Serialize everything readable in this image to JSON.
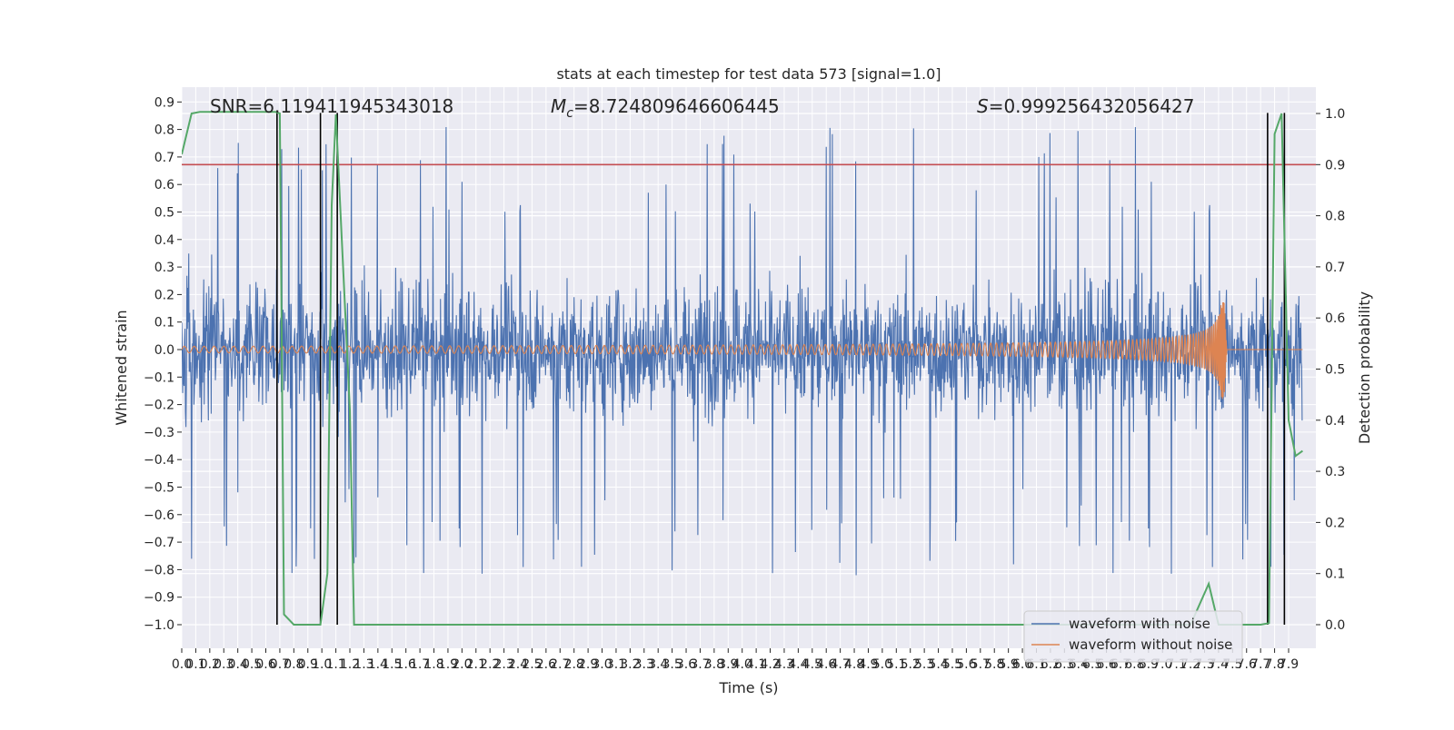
{
  "chart_data": {
    "type": "line",
    "title": "stats at each timestep for test data 573 [signal=1.0]",
    "xlabel": "Time (s)",
    "ylabel": "Whitened strain",
    "y2label": "Detection probability",
    "xlim": [
      0.0,
      8.0
    ],
    "ylim": [
      -1.1,
      0.95
    ],
    "y2lim": [
      -0.05,
      1.03
    ],
    "grid": true,
    "legend_position": "bottom-right",
    "annotations": {
      "snr": "SNR=6.119411945343018",
      "mc_symbol": "M",
      "mc_sub": "c",
      "mc_value": "=8.724809646606445",
      "s_symbol": "S",
      "s_value": "=0.999256432056427"
    },
    "xticks": [
      "0.0",
      "0.1",
      "0.2",
      "0.3",
      "0.4",
      "0.5",
      "0.6",
      "0.7",
      "0.8",
      "0.9",
      "1.0",
      "1.1",
      "1.2",
      "1.3",
      "1.4",
      "1.5",
      "1.6",
      "1.7",
      "1.8",
      "1.9",
      "2.0",
      "2.1",
      "2.2",
      "2.3",
      "2.4",
      "2.5",
      "2.6",
      "2.7",
      "2.8",
      "2.9",
      "3.0",
      "3.1",
      "3.2",
      "3.3",
      "3.4",
      "3.5",
      "3.6",
      "3.7",
      "3.8",
      "3.9",
      "4.0",
      "4.1",
      "4.2",
      "4.3",
      "4.4",
      "4.5",
      "4.6",
      "4.7",
      "4.8",
      "4.9",
      "5.0",
      "5.1",
      "5.2",
      "5.3",
      "5.4",
      "5.5",
      "5.6",
      "5.7",
      "5.8",
      "5.9",
      "6.0",
      "6.1",
      "6.2",
      "6.3",
      "6.4",
      "6.5",
      "6.6",
      "6.7",
      "6.8",
      "6.9",
      "7.0",
      "7.1",
      "7.2",
      "7.3",
      "7.4",
      "7.5",
      "7.6",
      "7.7",
      "7.8",
      "7.9"
    ],
    "yticks": [
      "0.9",
      "0.8",
      "0.7",
      "0.6",
      "0.5",
      "0.4",
      "0.3",
      "0.2",
      "0.1",
      "0.0",
      "−0.1",
      "−0.2",
      "−0.3",
      "−0.4",
      "−0.5",
      "−0.6",
      "−0.7",
      "−0.8",
      "−0.9",
      "−1.0"
    ],
    "y2ticks": [
      "1.0",
      "0.9",
      "0.8",
      "0.7",
      "0.6",
      "0.5",
      "0.4",
      "0.3",
      "0.2",
      "0.1",
      "0.0"
    ],
    "series": [
      {
        "name": "waveform with noise",
        "axis": "left",
        "color": "#4c72b0",
        "noise_envelope": {
          "typical_max": 0.5,
          "typical_min": -0.45,
          "extreme_max": 0.86,
          "extreme_min": -1.0
        }
      },
      {
        "name": "waveform without noise",
        "axis": "left",
        "color": "#dd8452",
        "chirp": {
          "initial_amplitude": 0.012,
          "peak_amplitude": 0.18,
          "merger_time": 7.44,
          "ringdown_end": 7.46
        }
      },
      {
        "name": "detection probability",
        "axis": "right",
        "color": "#55a868",
        "x": [
          0.0,
          0.07,
          0.13,
          0.2,
          0.4,
          0.67,
          0.7,
          0.73,
          0.8,
          0.9,
          0.99,
          1.04,
          1.07,
          1.1,
          1.2,
          1.23,
          1.3,
          2.0,
          3.0,
          4.0,
          5.0,
          6.0,
          6.5,
          7.0,
          7.2,
          7.33,
          7.4,
          7.5,
          7.6,
          7.7,
          7.76,
          7.8,
          7.85,
          7.9,
          7.95,
          8.0
        ],
        "values": [
          0.92,
          1.0,
          1.003,
          1.003,
          1.003,
          1.003,
          1.0,
          0.02,
          0.0,
          0.0,
          0.0,
          0.1,
          0.82,
          0.998,
          0.42,
          0.0,
          0.0,
          0.0,
          0.0,
          0.0,
          0.0,
          0.0,
          0.0,
          0.0,
          0.0,
          0.08,
          0.0,
          0.0,
          0.0,
          0.0,
          0.003,
          0.96,
          1.0,
          0.4,
          0.33,
          0.34
        ]
      }
    ],
    "threshold": {
      "axis": "right",
      "value": 0.9,
      "color": "#c44e52"
    },
    "event_markers": {
      "color": "#000000",
      "x": [
        0.68,
        0.99,
        1.11,
        7.75,
        7.87
      ],
      "y_top": 0.86,
      "y_bottom": -1.0
    },
    "legend": [
      "waveform with noise",
      "waveform without noise"
    ]
  }
}
